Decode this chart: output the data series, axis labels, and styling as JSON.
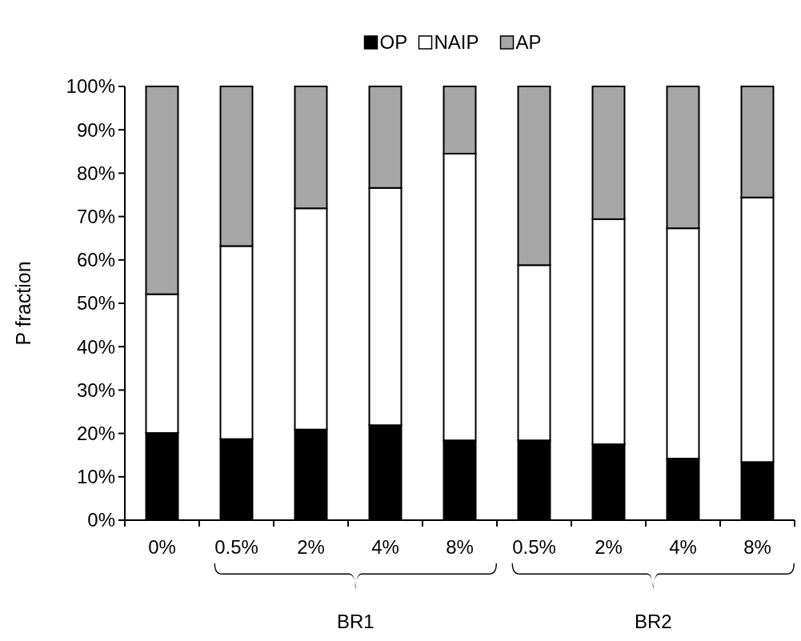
{
  "chart_data": {
    "type": "bar",
    "stacked": true,
    "ylabel": "P fraction",
    "categories": [
      "0%",
      "0.5%",
      "2%",
      "4%",
      "8%",
      "0.5%",
      "2%",
      "4%",
      "8%"
    ],
    "series": [
      {
        "name": "OP",
        "color": "#000000",
        "values": [
          20.1,
          18.7,
          20.9,
          21.9,
          18.4,
          18.4,
          17.5,
          14.2,
          13.4
        ]
      },
      {
        "name": "NAIP",
        "color": "#ffffff",
        "values": [
          32.0,
          44.5,
          51.0,
          54.7,
          66.1,
          40.4,
          51.9,
          53.1,
          61.0
        ]
      },
      {
        "name": "AP",
        "color": "#a6a6a6",
        "values": [
          47.9,
          36.8,
          28.1,
          23.4,
          15.5,
          41.2,
          30.6,
          32.7,
          25.6
        ]
      }
    ],
    "ylim": [
      0,
      100
    ],
    "yticks": [
      {
        "value": 0,
        "label": "0%"
      },
      {
        "value": 10,
        "label": "10%"
      },
      {
        "value": 20,
        "label": "20%"
      },
      {
        "value": 30,
        "label": "30%"
      },
      {
        "value": 40,
        "label": "40%"
      },
      {
        "value": 50,
        "label": "50%"
      },
      {
        "value": 60,
        "label": "60%"
      },
      {
        "value": 70,
        "label": "70%"
      },
      {
        "value": 80,
        "label": "80%"
      },
      {
        "value": 90,
        "label": "90%"
      },
      {
        "value": 100,
        "label": "100%"
      }
    ],
    "annotations": [
      "BR1",
      "BR2"
    ],
    "legend": "top",
    "grid": false
  }
}
